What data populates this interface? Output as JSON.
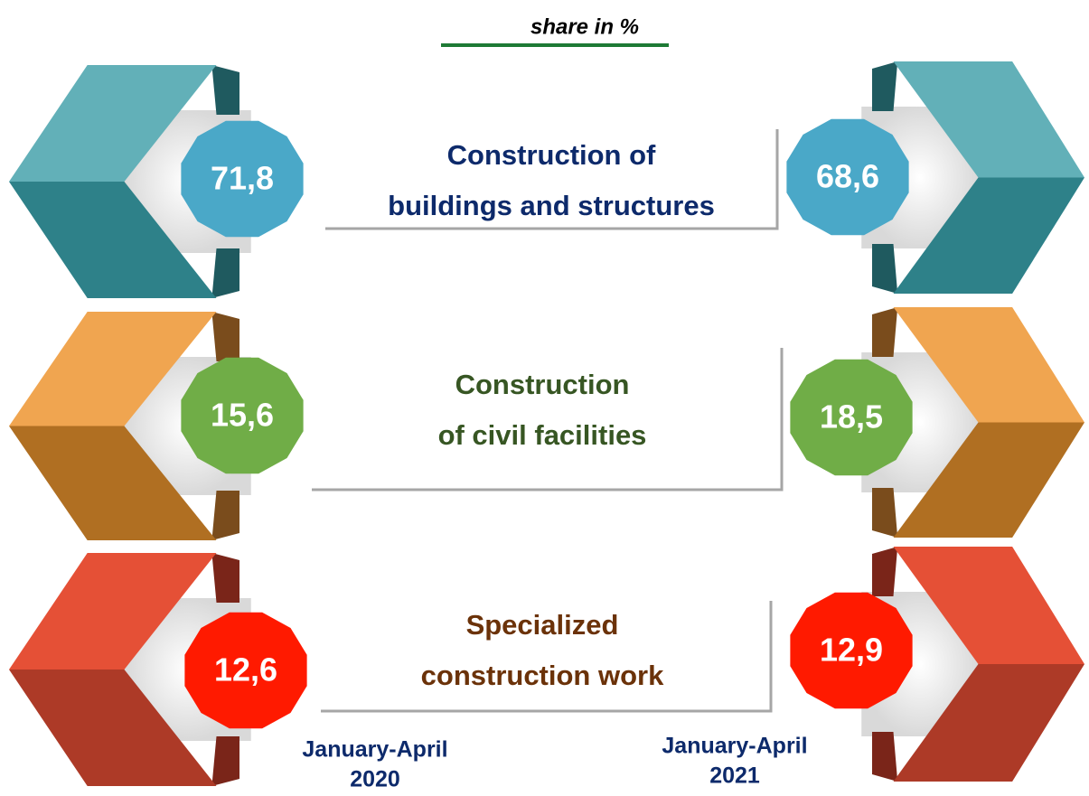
{
  "header": {
    "title": "share in %"
  },
  "rows": [
    {
      "label_lines": [
        "Construction of",
        "buildings and structures"
      ],
      "value_2020": "71,8",
      "value_2021": "68,6"
    },
    {
      "label_lines": [
        "Construction",
        "of civil facilities"
      ],
      "value_2020": "15,6",
      "value_2021": "18,5"
    },
    {
      "label_lines": [
        "Specialized",
        "construction work"
      ],
      "value_2020": "12,6",
      "value_2021": "12,9"
    }
  ],
  "periods": [
    [
      "January-April",
      "2020"
    ],
    [
      "January-April",
      "2021"
    ]
  ]
}
